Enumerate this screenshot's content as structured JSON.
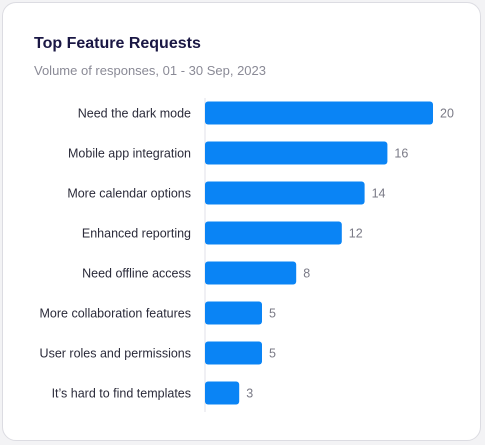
{
  "card": {
    "title": "Top Feature Requests",
    "subtitle": "Volume of responses, 01 - 30 Sep, 2023"
  },
  "colors": {
    "bar": "#0a84f5",
    "title": "#1a1744",
    "label": "#2b2b3a",
    "value": "#7a7a86",
    "axis": "#e2e2e8"
  },
  "chart_data": {
    "type": "bar",
    "orientation": "horizontal",
    "categories": [
      "Need the dark mode",
      "Mobile app integration",
      "More calendar options",
      "Enhanced reporting",
      "Need offline access",
      "More collaboration features",
      "User roles and permissions",
      "It’s hard to find templates"
    ],
    "values": [
      20,
      16,
      14,
      12,
      8,
      5,
      5,
      3
    ],
    "xlim": [
      0,
      20
    ],
    "grid": false,
    "legend": "none"
  }
}
